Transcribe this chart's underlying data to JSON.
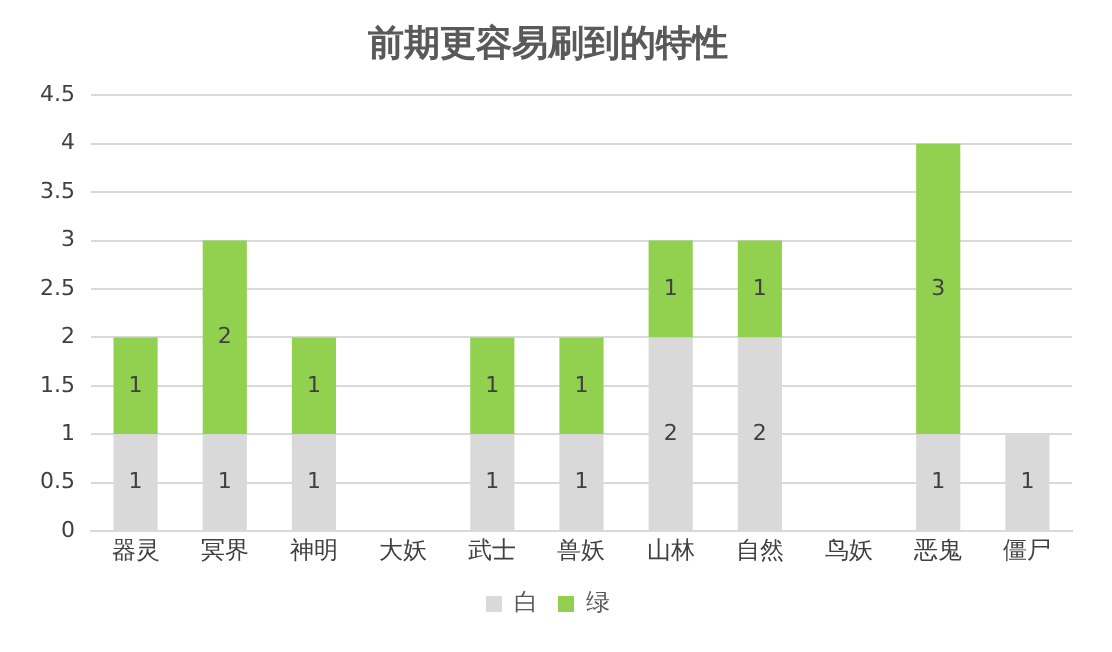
{
  "chart_data": {
    "type": "bar",
    "title": "前期更容易刷到的特性",
    "categories": [
      "器灵",
      "冥界",
      "神明",
      "大妖",
      "武士",
      "兽妖",
      "山林",
      "自然",
      "鸟妖",
      "恶鬼",
      "僵尸"
    ],
    "stacked": true,
    "series": [
      {
        "name": "白",
        "color": "#d9d9d9",
        "values": [
          1,
          1,
          1,
          null,
          1,
          1,
          2,
          2,
          null,
          1,
          1
        ]
      },
      {
        "name": "绿",
        "color": "#92d050",
        "values": [
          1,
          2,
          1,
          null,
          1,
          1,
          1,
          1,
          null,
          3,
          null
        ]
      }
    ],
    "ylim": [
      0,
      4.5
    ],
    "yticks": [
      0,
      0.5,
      1,
      1.5,
      2,
      2.5,
      3,
      3.5,
      4,
      4.5
    ],
    "grid": "y",
    "legend": "bottom",
    "data_labels": true
  }
}
